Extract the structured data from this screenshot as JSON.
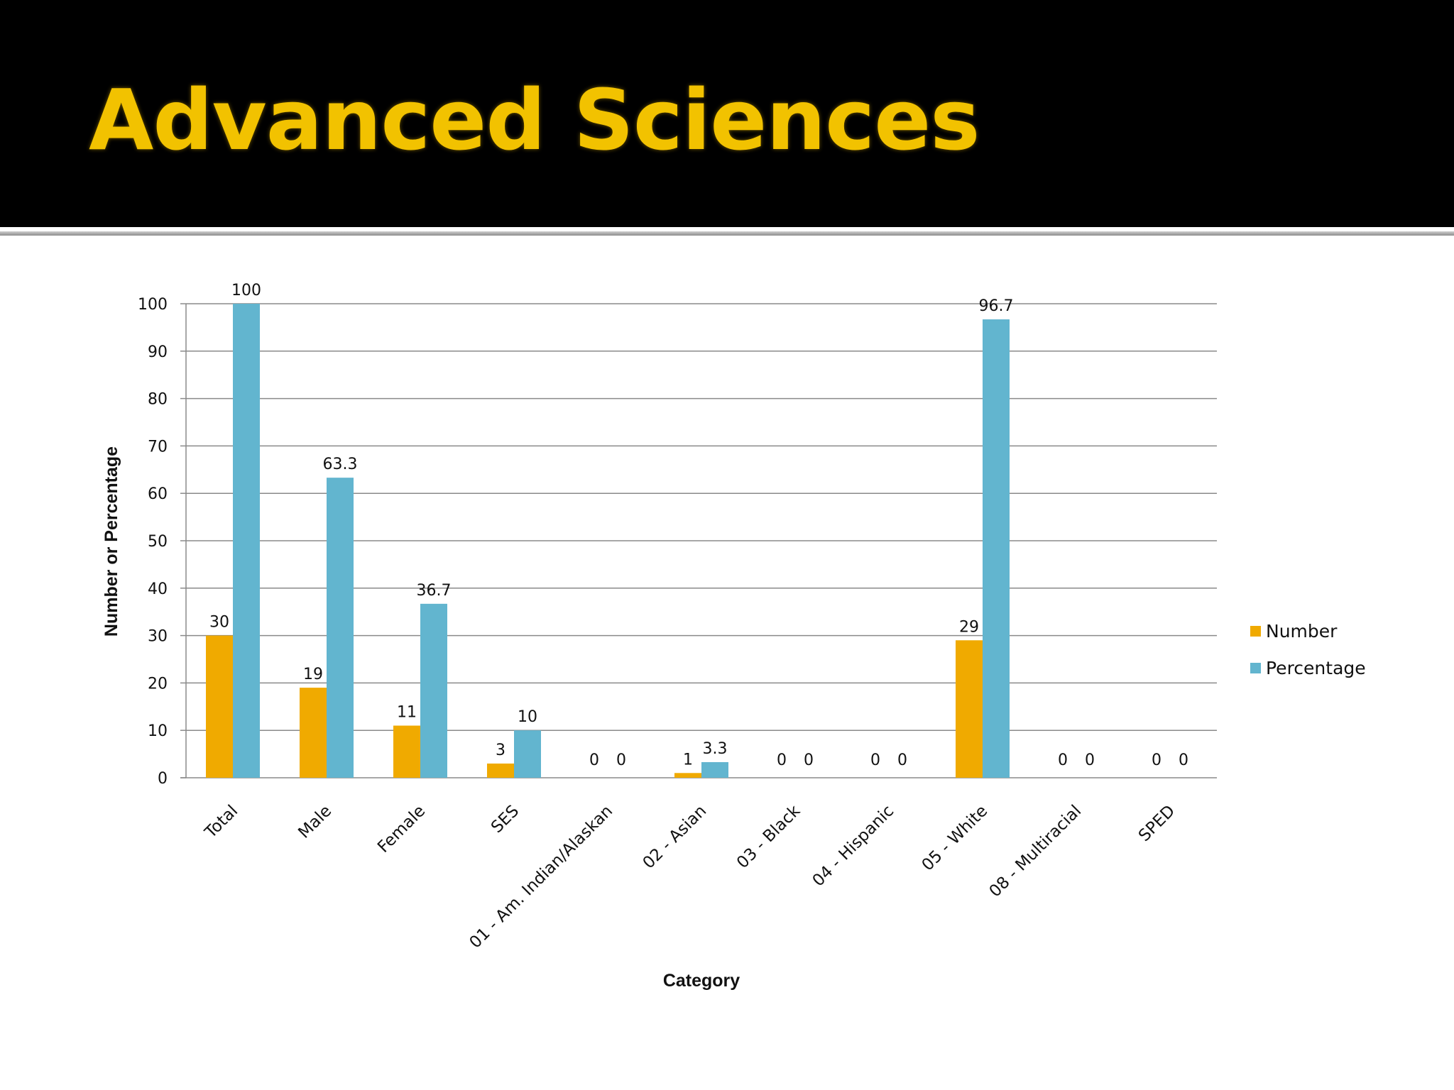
{
  "slide": {
    "title": "Advanced Sciences"
  },
  "chart_data": {
    "type": "bar",
    "title": "",
    "xlabel": "Category",
    "ylabel": "Number or Percentage",
    "ylim": [
      0,
      100
    ],
    "yticks": [
      0,
      10,
      20,
      30,
      40,
      50,
      60,
      70,
      80,
      90,
      100
    ],
    "grid": true,
    "legend_position": "right",
    "categories": [
      "Total",
      "Male",
      "Female",
      "SES",
      "01 - Am. Indian/Alaskan",
      "02 - Asian",
      "03 - Black",
      "04 - Hispanic",
      "05 - White",
      "08 - Multiracial",
      "SPED"
    ],
    "series": [
      {
        "name": "Number",
        "color": "#f0aa00",
        "values": [
          30,
          19,
          11,
          3,
          0,
          1,
          0,
          0,
          29,
          0,
          0
        ]
      },
      {
        "name": "Percentage",
        "color": "#62b5cf",
        "values": [
          100,
          63.3,
          36.7,
          10,
          0,
          3.3,
          0,
          0,
          96.7,
          0,
          0
        ]
      }
    ]
  }
}
